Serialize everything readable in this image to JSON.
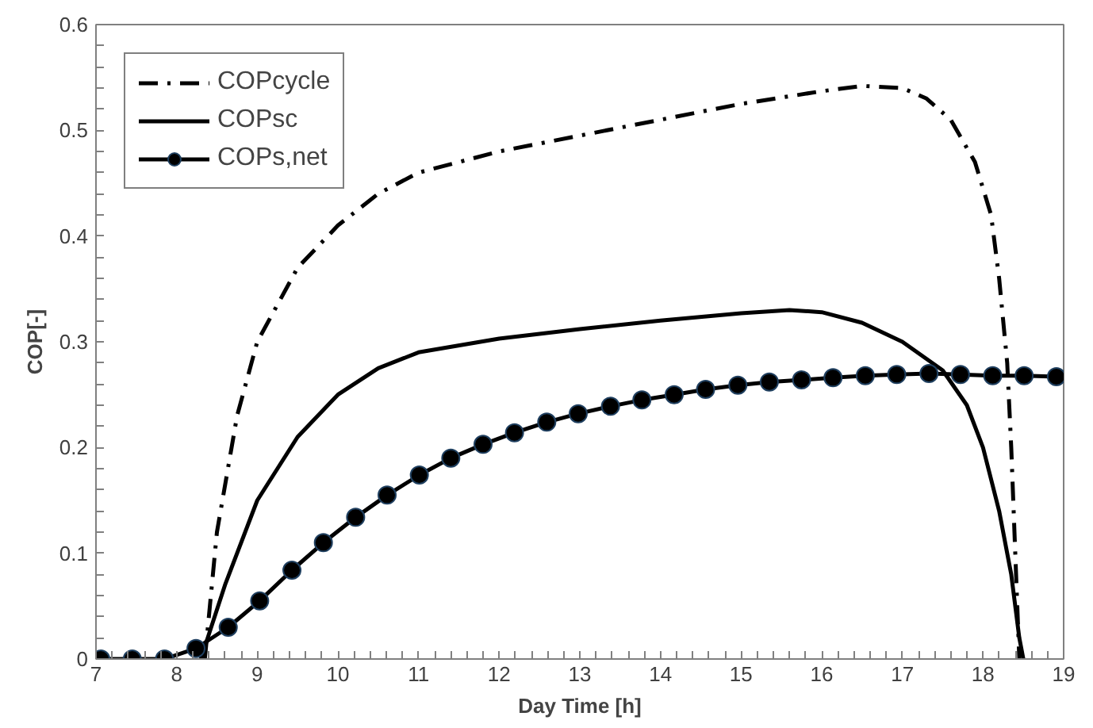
{
  "chart_data": {
    "type": "line",
    "xlabel": "Day Time [h]",
    "ylabel": "COP[-]",
    "xlim": [
      7,
      19
    ],
    "ylim": [
      0,
      0.6
    ],
    "xticks": [
      7,
      8,
      9,
      10,
      11,
      12,
      13,
      14,
      15,
      16,
      17,
      18,
      19
    ],
    "yticks": [
      0,
      0.1,
      0.2,
      0.3,
      0.4,
      0.5,
      0.6
    ],
    "grid": false,
    "legend": "top left",
    "series": [
      {
        "name": "COPcycle",
        "color": "#000000",
        "line_style": "dashdot",
        "marker": "none",
        "x": [
          8.35,
          8.5,
          8.75,
          9,
          9.5,
          10,
          10.5,
          11,
          12,
          13,
          14,
          15,
          16,
          16.5,
          17,
          17.3,
          17.6,
          17.9,
          18.1,
          18.2,
          18.3,
          18.35,
          18.4,
          18.45
        ],
        "values": [
          0,
          0.12,
          0.23,
          0.3,
          0.37,
          0.41,
          0.44,
          0.46,
          0.48,
          0.495,
          0.51,
          0.525,
          0.537,
          0.542,
          0.54,
          0.53,
          0.51,
          0.47,
          0.42,
          0.36,
          0.28,
          0.2,
          0.1,
          0
        ]
      },
      {
        "name": "COPsc",
        "color": "#000000",
        "line_style": "solid",
        "marker": "none",
        "x": [
          8.3,
          8.6,
          9,
          9.5,
          10,
          10.5,
          11,
          12,
          13,
          14,
          15,
          15.6,
          16,
          16.5,
          17,
          17.5,
          17.8,
          18,
          18.2,
          18.35,
          18.45,
          18.5
        ],
        "values": [
          0,
          0.07,
          0.15,
          0.21,
          0.25,
          0.275,
          0.29,
          0.303,
          0.312,
          0.32,
          0.327,
          0.33,
          0.328,
          0.318,
          0.3,
          0.273,
          0.24,
          0.2,
          0.14,
          0.08,
          0.02,
          0
        ]
      },
      {
        "name": "COPs,net",
        "color": "#000000",
        "line_style": "solid",
        "marker": "circle",
        "x": [
          7.06,
          7.45,
          7.85,
          8.24,
          8.64,
          9.03,
          9.43,
          9.82,
          10.22,
          10.61,
          11.01,
          11.4,
          11.8,
          12.19,
          12.59,
          12.98,
          13.38,
          13.77,
          14.17,
          14.56,
          14.96,
          15.35,
          15.75,
          16.14,
          16.54,
          16.93,
          17.33,
          17.72,
          18.12,
          18.51,
          18.91
        ],
        "values": [
          0,
          0,
          0,
          0.01,
          0.03,
          0.055,
          0.084,
          0.11,
          0.134,
          0.155,
          0.174,
          0.19,
          0.203,
          0.214,
          0.224,
          0.232,
          0.239,
          0.245,
          0.25,
          0.255,
          0.259,
          0.262,
          0.264,
          0.266,
          0.268,
          0.269,
          0.27,
          0.269,
          0.268,
          0.268,
          0.267
        ]
      }
    ]
  }
}
